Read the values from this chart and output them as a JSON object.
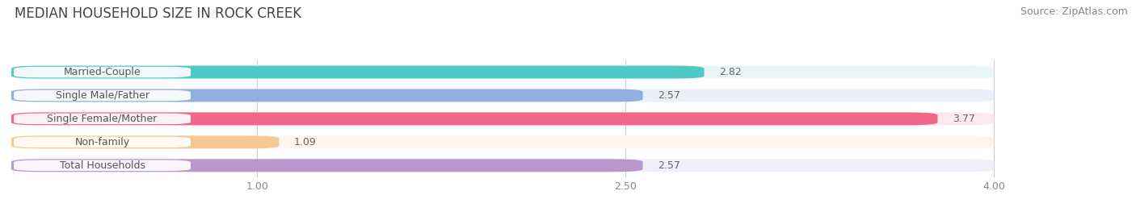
{
  "title": "MEDIAN HOUSEHOLD SIZE IN ROCK CREEK",
  "source": "Source: ZipAtlas.com",
  "categories": [
    "Married-Couple",
    "Single Male/Father",
    "Single Female/Mother",
    "Non-family",
    "Total Households"
  ],
  "values": [
    2.82,
    2.57,
    3.77,
    1.09,
    2.57
  ],
  "bar_colors": [
    "#50c8c8",
    "#90aee0",
    "#f06888",
    "#f5c896",
    "#b898cc"
  ],
  "bar_bg_colors": [
    "#e8f6f6",
    "#eaeef8",
    "#fce8ef",
    "#fdf6ee",
    "#f2eef8"
  ],
  "label_text_color": "#555555",
  "xlim": [
    0.0,
    4.3
  ],
  "xmin": 0.0,
  "xmax": 4.0,
  "xticks": [
    1.0,
    2.5,
    4.0
  ],
  "value_fontsize": 9,
  "label_fontsize": 9,
  "title_fontsize": 12,
  "source_fontsize": 9,
  "background_color": "#ffffff"
}
